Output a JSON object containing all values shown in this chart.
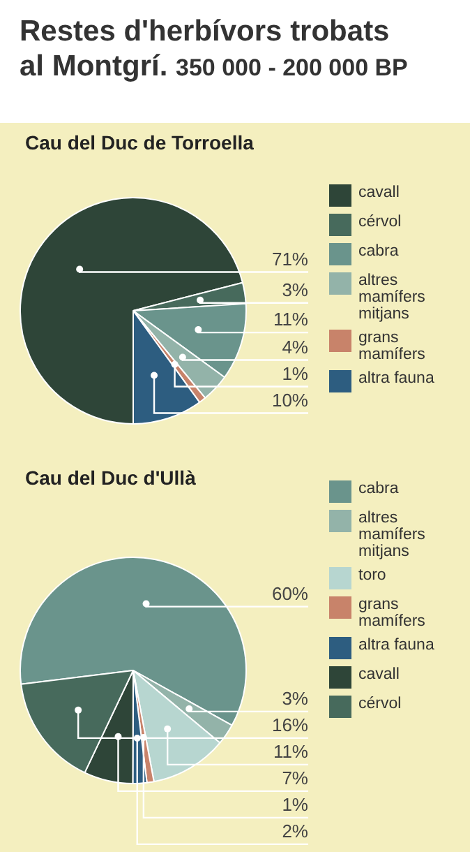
{
  "chart_data": [
    {
      "type": "other",
      "title": "Restes d'herbívors trobats al Montgrí.",
      "subtitle": "350 000 - 200 000 BP"
    },
    {
      "type": "pie",
      "title": "Cau del Duc de Torroella",
      "categories": [
        "cavall",
        "cérvol",
        "cabra",
        "altres mamífers mitjans",
        "grans mamífers",
        "altra fauna"
      ],
      "values": [
        71,
        3,
        11,
        4,
        1,
        10
      ],
      "value_labels": [
        "71%",
        "3%",
        "11%",
        "4%",
        "1%",
        "10%"
      ],
      "colors": [
        "#2e4538",
        "#476a5c",
        "#6a948c",
        "#93b3a9",
        "#c8836a",
        "#2d5d80"
      ],
      "legend": "right"
    },
    {
      "type": "pie",
      "title": "Cau del Duc d'Ullà",
      "categories": [
        "cabra",
        "altres mamífers mitjans",
        "toro",
        "grans mamífers",
        "altra fauna",
        "cavall",
        "cérvol"
      ],
      "values": [
        60,
        3,
        11,
        1,
        2,
        7,
        16
      ],
      "value_labels": [
        "60%",
        "3%",
        "11%",
        "1%",
        "2%",
        "7%",
        "16%"
      ],
      "colors": [
        "#6a948c",
        "#93b3a9",
        "#b7d6d0",
        "#c8836a",
        "#2d5d80",
        "#2e4538",
        "#476a5c"
      ],
      "legend": "right"
    }
  ]
}
